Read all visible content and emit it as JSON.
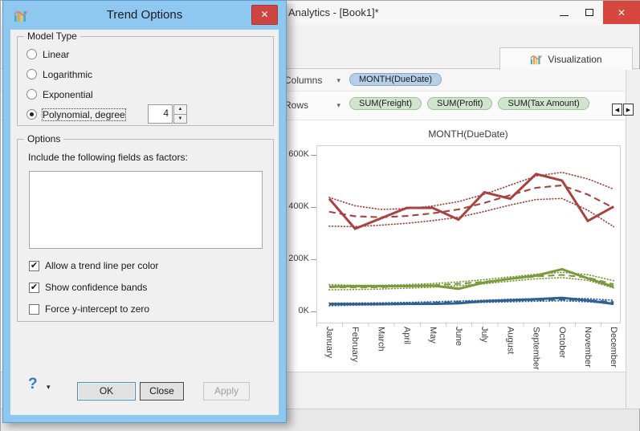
{
  "window": {
    "title": "Analytics - [Book1]*",
    "tab_label": "Visualization",
    "shelves": {
      "columns_label": "Columns",
      "rows_label": "Rows",
      "columns_pills": [
        {
          "id": "month-duedate",
          "label": "MONTH(DueDate)"
        }
      ],
      "rows_pills": [
        {
          "id": "sum-freight",
          "label": "SUM(Freight)"
        },
        {
          "id": "sum-profit",
          "label": "SUM(Profit)"
        },
        {
          "id": "sum-tax-amount",
          "label": "SUM(Tax Amount)"
        }
      ]
    },
    "colors": {
      "pill_blue": "#b7d0ea",
      "pill_green": "#cfe6cd",
      "window_close_red": "#d8473e"
    }
  },
  "dialog": {
    "title": "Trend Options",
    "model_type": {
      "legend": "Model Type",
      "options": [
        {
          "id": "linear",
          "label": "Linear",
          "selected": false
        },
        {
          "id": "logarithmic",
          "label": "Logarithmic",
          "selected": false
        },
        {
          "id": "exponential",
          "label": "Exponential",
          "selected": false
        },
        {
          "id": "polynomial",
          "label": "Polynomial, degree",
          "selected": true
        }
      ],
      "degree_value": "4"
    },
    "options": {
      "legend": "Options",
      "factors_label": "Include the following fields as factors:",
      "checkboxes": [
        {
          "id": "trend-line-per-color",
          "label": "Allow a trend line per color",
          "checked": true
        },
        {
          "id": "show-confidence-bands",
          "label": "Show confidence bands",
          "checked": true
        },
        {
          "id": "force-y-intercept-zero",
          "label": "Force y-intercept to zero",
          "checked": false
        }
      ]
    },
    "buttons": {
      "help": "?",
      "ok": "OK",
      "close": "Close",
      "apply": "Apply"
    },
    "accent": {
      "frame_blue": "#8ec7f0",
      "close_red": "#cc4540"
    }
  },
  "icons": {
    "dialog_close": "✕",
    "window_close": "✕",
    "dropdown_caret": "▾",
    "spinner_up": "▲",
    "spinner_down": "▼",
    "scroll_left": "◀",
    "scroll_right": "▶",
    "help_caret": "▾"
  },
  "chart_data": {
    "type": "line",
    "title": "MONTH(DueDate)",
    "x_categories": [
      "January",
      "February",
      "March",
      "April",
      "May",
      "June",
      "July",
      "August",
      "September",
      "October",
      "November",
      "December"
    ],
    "y_ticks": [
      {
        "label": "0K",
        "value": 0
      },
      {
        "label": "200K",
        "value": 200
      },
      {
        "label": "400K",
        "value": 400
      },
      {
        "label": "600K",
        "value": 600
      }
    ],
    "y_unit": "thousands",
    "ylim": [
      -45,
      650
    ],
    "grid": false,
    "legend_position": "none",
    "encoding_note": "solid = monthly values, dashed = degree-4 polynomial trend line, dotted = confidence bands",
    "series": [
      {
        "id": "red",
        "color": "#a8423e",
        "values": [
          435,
          320,
          360,
          400,
          400,
          355,
          460,
          435,
          530,
          505,
          350,
          405
        ],
        "trend": [
          385,
          368,
          364,
          369,
          379,
          394,
          419,
          449,
          477,
          486,
          451,
          400
        ],
        "band_halfwidth": [
          55,
          40,
          30,
          28,
          28,
          30,
          33,
          38,
          45,
          50,
          60,
          72
        ]
      },
      {
        "id": "green",
        "color": "#7b9a3c",
        "values": [
          98,
          100,
          100,
          100,
          102,
          90,
          114,
          128,
          140,
          165,
          130,
          98
        ],
        "trend": [
          96,
          95,
          96,
          99,
          103,
          109,
          117,
          127,
          137,
          143,
          133,
          107
        ],
        "band_halfwidth": [
          10,
          8,
          7,
          7,
          7,
          7,
          8,
          8,
          9,
          10,
          11,
          14
        ]
      },
      {
        "id": "blue",
        "color": "#2f6093",
        "values": [
          31,
          31,
          31,
          32,
          32,
          34,
          42,
          46,
          50,
          55,
          45,
          32
        ],
        "trend": [
          30,
          31,
          32,
          34,
          36,
          39,
          42,
          45,
          47,
          49,
          46,
          39
        ],
        "band_halfwidth": [
          5,
          4,
          4,
          4,
          4,
          4,
          4,
          5,
          5,
          5,
          6,
          7
        ]
      }
    ]
  }
}
